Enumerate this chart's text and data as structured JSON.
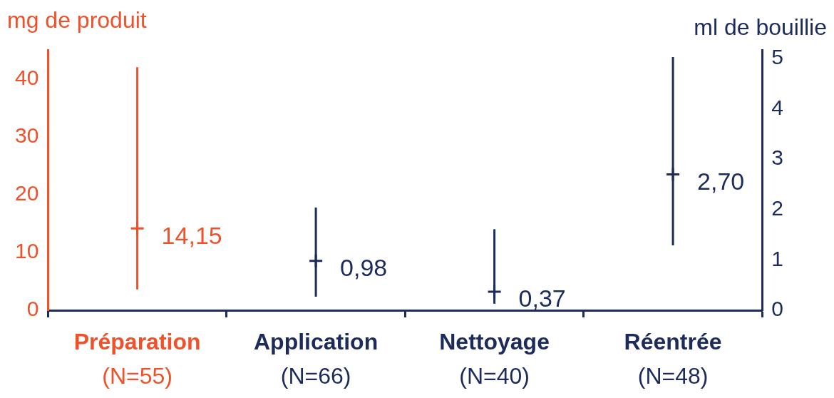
{
  "chart_data": {
    "type": "scatter",
    "ylabel": "mg de produit",
    "y2label": "ml de bouillie",
    "categories": [
      "Préparation\n(N=55)",
      "Application\n(N=66)",
      "Nettoyage\n(N=40)",
      "Réentrée\n(N=48)"
    ],
    "series": [
      {
        "color": "#f0502a",
        "axis": "y",
        "values": [
          14.15,
          null,
          null,
          null
        ],
        "errors": [
          [
            3.6,
            42
          ],
          null,
          null,
          null
        ],
        "value_labels": [
          "14,15",
          null,
          null,
          null
        ]
      },
      {
        "color": "#1c2b5c",
        "axis": "y2",
        "values": [
          null,
          0.98,
          0.37,
          2.7
        ],
        "errors": [
          null,
          [
            0.27,
            2.04
          ],
          [
            0.13,
            1.61
          ],
          [
            1.29,
            5.03
          ]
        ],
        "value_labels": [
          null,
          "0,98",
          "0,37",
          "2,70"
        ]
      }
    ],
    "marker": "cross",
    "ylim": [
      0,
      45
    ],
    "yticks": [
      0,
      10,
      20,
      30,
      40
    ],
    "y2lim": [
      0,
      5.17
    ],
    "y2ticks": [
      0,
      1,
      2,
      3,
      4,
      5
    ]
  }
}
